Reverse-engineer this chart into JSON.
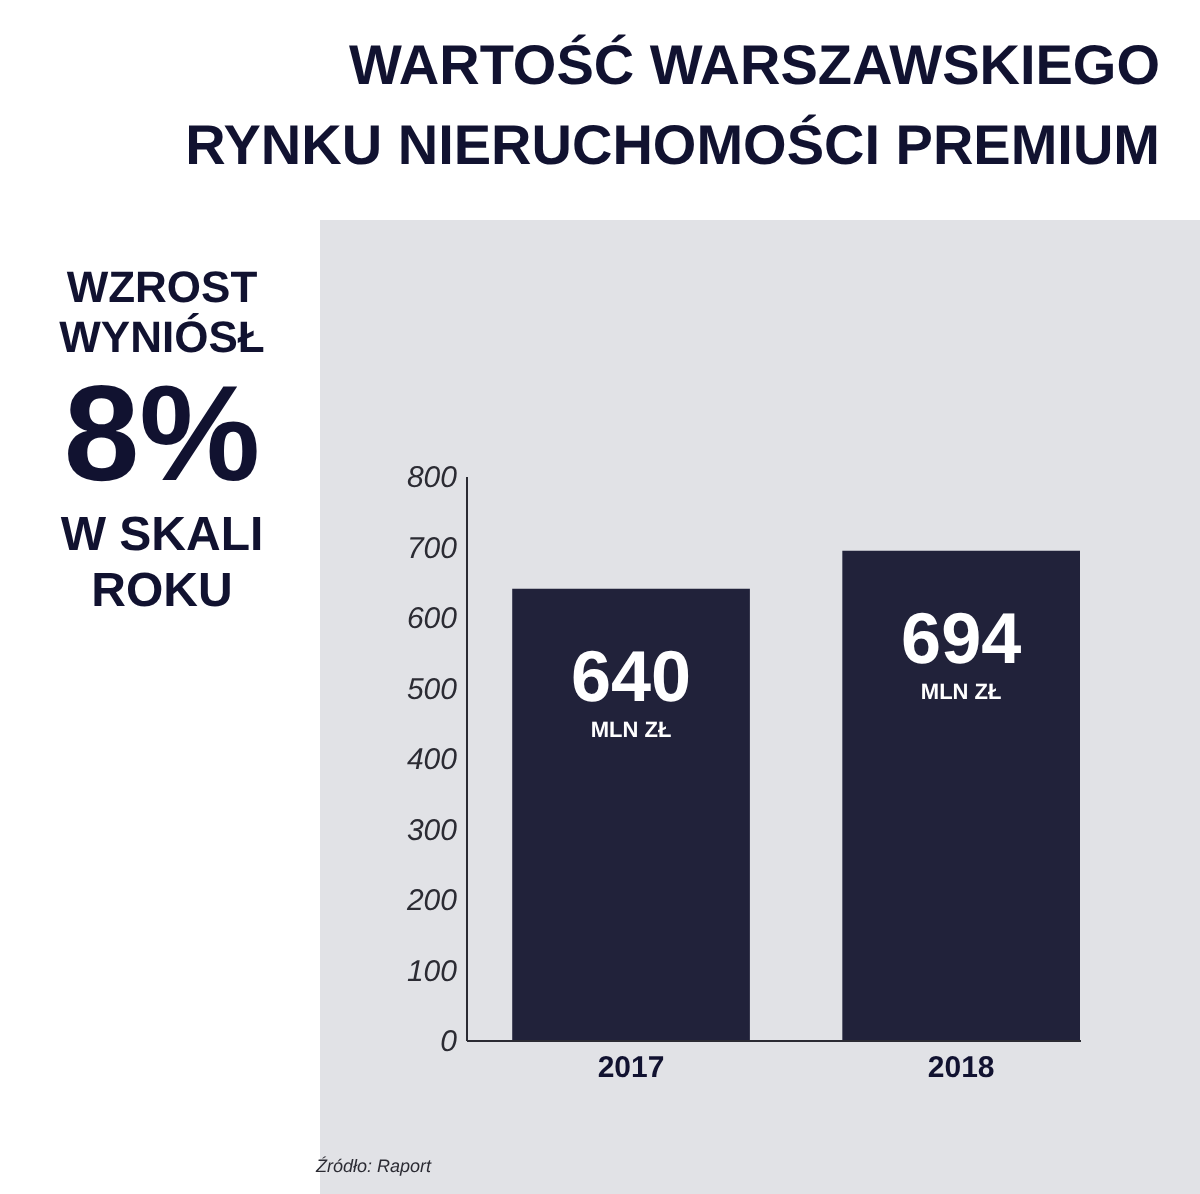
{
  "chart_data": {
    "type": "bar",
    "title": "WARTOŚĆ WARSZAWSKIEGO\nRYNKU NIERUCHOMOŚCI PREMIUM",
    "categories": [
      "2017",
      "2018"
    ],
    "values": [
      640,
      694
    ],
    "color": "#21223a",
    "ylim": [
      0,
      800
    ],
    "yticks": [
      0,
      100,
      200,
      300,
      400,
      500,
      600,
      700,
      800
    ],
    "value_labels": [
      "640\nMLN ZŁ",
      "694\nMLN ZŁ"
    ],
    "annotations": [
      "WZROST\nWYNIÓSŁ",
      "8%",
      "W SKALI\nROKU",
      "Źródło: Raport"
    ]
  }
}
